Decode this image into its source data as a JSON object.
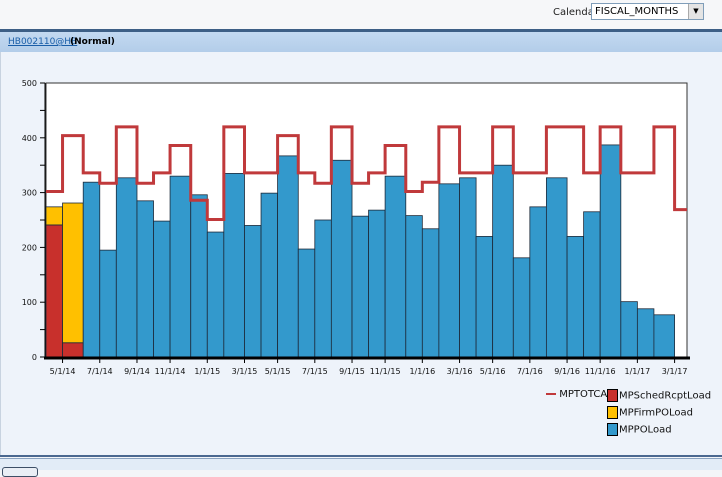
{
  "toolbar": {
    "calendar_label": "Calendar:",
    "calendar_value": "FISCAL_MONTHS"
  },
  "header": {
    "item_link": "HB002110@HB",
    "status": "(Normal)"
  },
  "chart_data": {
    "type": "bar",
    "stacked": true,
    "xlabel": "",
    "ylabel": "",
    "ylim": [
      0,
      500
    ],
    "yticks": [
      0,
      100,
      200,
      300,
      400,
      500
    ],
    "grid": false,
    "legend_position": "bottom-right",
    "categories": [
      "4/1/14",
      "5/1/14",
      "6/1/14",
      "7/1/14",
      "8/1/14",
      "9/1/14",
      "10/1/14",
      "11/1/14",
      "12/1/14",
      "1/1/15",
      "2/1/15",
      "3/1/15",
      "4/1/15",
      "5/1/15",
      "6/1/15",
      "7/1/15",
      "8/1/15",
      "9/1/15",
      "10/1/15",
      "11/1/15",
      "12/1/15",
      "1/1/16",
      "2/1/16",
      "3/1/16",
      "4/1/16",
      "5/1/16",
      "6/1/16",
      "7/1/16",
      "8/1/16",
      "9/1/16",
      "10/1/16",
      "11/1/16",
      "12/1/16",
      "1/1/17",
      "2/1/17",
      "3/1/17"
    ],
    "xtick_labels": [
      "5/1/14",
      "7/1/14",
      "9/1/14",
      "11/1/14",
      "1/1/15",
      "3/1/15",
      "5/1/15",
      "7/1/15",
      "9/1/15",
      "11/1/15",
      "1/1/16",
      "3/1/16",
      "5/1/16",
      "7/1/16",
      "9/1/16",
      "11/1/16",
      "1/1/17",
      "3/1/17"
    ],
    "series": [
      {
        "name": "MPSchedRcptLoad",
        "type": "bar",
        "color": "#c8302c",
        "values": [
          241,
          26,
          0,
          0,
          0,
          0,
          0,
          0,
          0,
          0,
          0,
          0,
          0,
          0,
          0,
          0,
          0,
          0,
          0,
          0,
          0,
          0,
          0,
          0,
          0,
          0,
          0,
          0,
          0,
          0,
          0,
          0,
          0,
          0,
          0,
          null
        ]
      },
      {
        "name": "MPFirmPOLoad",
        "type": "bar",
        "color": "#ffc000",
        "values": [
          33,
          255,
          0,
          0,
          0,
          0,
          0,
          0,
          0,
          0,
          0,
          0,
          0,
          0,
          0,
          0,
          0,
          0,
          0,
          0,
          0,
          0,
          0,
          0,
          0,
          0,
          0,
          0,
          0,
          0,
          0,
          0,
          0,
          0,
          0,
          null
        ]
      },
      {
        "name": "MPPOLoad",
        "type": "bar",
        "color": "#3399cc",
        "values": [
          0,
          0,
          319,
          195,
          327,
          285,
          248,
          330,
          296,
          228,
          335,
          240,
          299,
          367,
          197,
          250,
          359,
          257,
          268,
          330,
          258,
          234,
          316,
          327,
          220,
          350,
          181,
          274,
          327,
          220,
          265,
          387,
          101,
          88,
          77,
          null
        ]
      },
      {
        "name": "MPTOTCAP",
        "type": "line",
        "color": "#c0393b",
        "values": [
          302,
          404,
          336,
          317,
          420,
          317,
          336,
          386,
          286,
          251,
          420,
          336,
          336,
          404,
          336,
          317,
          420,
          317,
          336,
          386,
          302,
          319,
          420,
          336,
          336,
          420,
          336,
          336,
          420,
          420,
          336,
          420,
          336,
          336,
          420,
          269
        ]
      }
    ]
  }
}
